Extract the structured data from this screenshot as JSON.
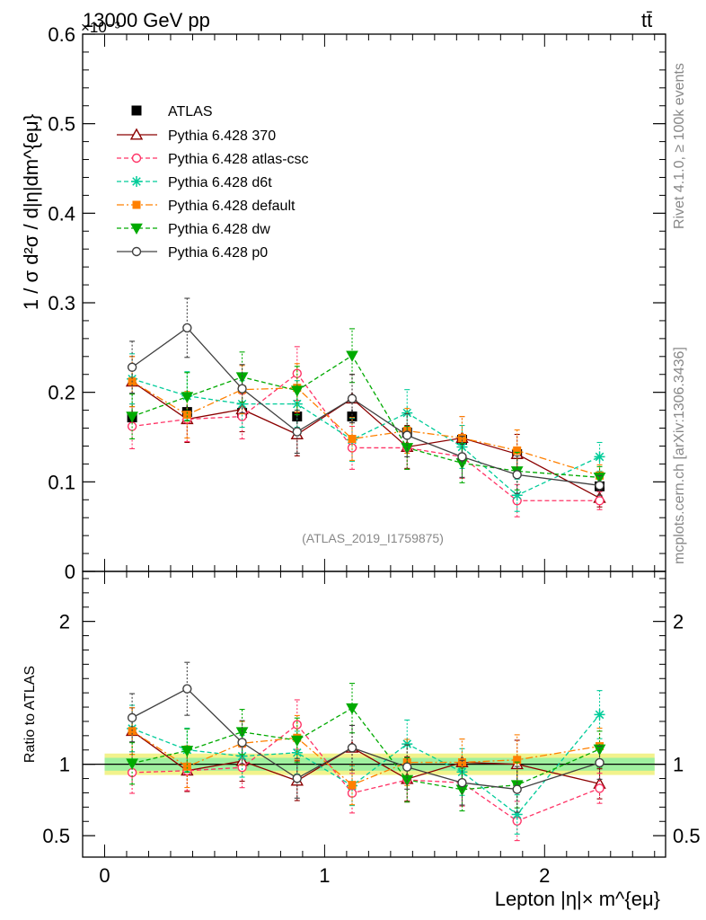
{
  "header": {
    "left": "13000 GeV pp",
    "right": "tt̄",
    "exponent": "×10⁻³"
  },
  "side": {
    "rivet": "Rivet 4.1.0, ≥ 100k events",
    "mcplots": "mcplots.cern.ch [arXiv:1306.3436]"
  },
  "chart_data": [
    {
      "type": "line",
      "title": "13000 GeV pp, tt̄",
      "analysis": "(ATLAS_2019_I1759875)",
      "ylabel": "1 / σ  d²σ / d|η|dm^{eμ}",
      "ylim": [
        0,
        0.6
      ],
      "yticks": [
        0,
        0.1,
        0.2,
        0.3,
        0.4,
        0.5,
        0.6
      ],
      "ytick_labels": [
        "0",
        "0.1",
        "0.2",
        "0.3",
        "0.4",
        "0.5",
        "0.6"
      ],
      "x": [
        0.125,
        0.375,
        0.625,
        0.875,
        1.125,
        1.375,
        1.625,
        1.875,
        2.25
      ],
      "bin_edges": [
        0,
        0.25,
        0.5,
        0.75,
        1.0,
        1.25,
        1.5,
        1.75,
        2.0,
        2.5
      ],
      "reference": {
        "name": "ATLAS",
        "values": [
          0.172,
          0.178,
          0.177,
          0.173,
          0.173,
          0.155,
          0.147,
          0.131,
          0.095
        ],
        "errors": [
          0.008,
          0.008,
          0.008,
          0.008,
          0.008,
          0.007,
          0.007,
          0.007,
          0.005
        ]
      },
      "series": [
        {
          "name": "Pythia 6.428 370",
          "color": "#8b0000",
          "marker": "triangle-open",
          "dash": "",
          "values": [
            0.212,
            0.17,
            0.181,
            0.153,
            0.193,
            0.139,
            0.149,
            0.131,
            0.082
          ],
          "errors": [
            0.028,
            0.026,
            0.025,
            0.024,
            0.027,
            0.024,
            0.024,
            0.022,
            0.01
          ]
        },
        {
          "name": "Pythia 6.428 atlas-csc",
          "color": "#ff3366",
          "marker": "circle-open",
          "dash": "5,3",
          "values": [
            0.162,
            0.17,
            0.173,
            0.221,
            0.138,
            0.138,
            0.128,
            0.079,
            0.079
          ],
          "errors": [
            0.025,
            0.025,
            0.025,
            0.03,
            0.024,
            0.024,
            0.024,
            0.018,
            0.01
          ]
        },
        {
          "name": "Pythia 6.428 d6t",
          "color": "#00cc99",
          "marker": "star",
          "dash": "5,3",
          "values": [
            0.215,
            0.196,
            0.187,
            0.187,
            0.147,
            0.177,
            0.139,
            0.085,
            0.128
          ],
          "errors": [
            0.028,
            0.027,
            0.026,
            0.026,
            0.024,
            0.026,
            0.024,
            0.018,
            0.016
          ]
        },
        {
          "name": "Pythia 6.428 default",
          "color": "#ff8000",
          "marker": "square",
          "dash": "8,3,2,3",
          "values": [
            0.212,
            0.175,
            0.203,
            0.205,
            0.148,
            0.157,
            0.149,
            0.135,
            0.107
          ],
          "errors": [
            0.028,
            0.026,
            0.027,
            0.027,
            0.024,
            0.025,
            0.024,
            0.023,
            0.012
          ]
        },
        {
          "name": "Pythia 6.428 dw",
          "color": "#00aa00",
          "marker": "triangle-down",
          "dash": "5,3",
          "values": [
            0.173,
            0.195,
            0.217,
            0.202,
            0.241,
            0.138,
            0.121,
            0.112,
            0.105
          ],
          "errors": [
            0.025,
            0.027,
            0.028,
            0.027,
            0.03,
            0.024,
            0.022,
            0.021,
            0.012
          ]
        },
        {
          "name": "Pythia 6.428 p0",
          "color": "#404040",
          "marker": "circle-open",
          "dash": "",
          "values": [
            0.228,
            0.272,
            0.204,
            0.156,
            0.193,
            0.152,
            0.128,
            0.108,
            0.096
          ],
          "errors": [
            0.029,
            0.033,
            0.027,
            0.024,
            0.027,
            0.024,
            0.023,
            0.021,
            0.011
          ]
        }
      ]
    },
    {
      "type": "line",
      "ylabel": "Ratio to ATLAS",
      "xlabel": "Lepton |η|× m^{eμ}",
      "xlim": [
        -0.1,
        2.55
      ],
      "ylim": [
        0.35,
        2.35
      ],
      "xticks": [
        0,
        1,
        2
      ],
      "xtick_labels": [
        "0",
        "1",
        "2"
      ],
      "yticks": [
        0.5,
        1,
        2
      ],
      "ytick_labels": [
        "0.5",
        "1",
        "2"
      ],
      "band": {
        "inner": 0.045,
        "outer": 0.075
      }
    }
  ]
}
